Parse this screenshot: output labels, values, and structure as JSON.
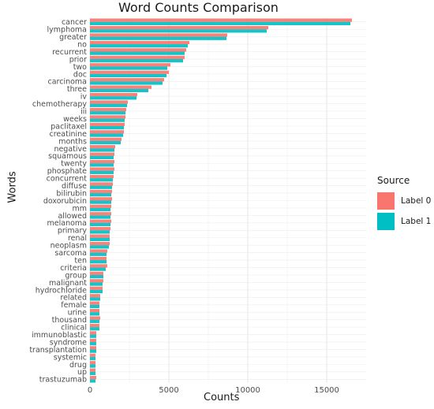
{
  "chart_data": {
    "type": "bar",
    "orientation": "horizontal",
    "title": "Word Counts Comparison",
    "xlabel": "Counts",
    "ylabel": "Words",
    "xlim": [
      0,
      17500
    ],
    "xticks": [
      0,
      5000,
      10000,
      15000
    ],
    "xtick_labels": [
      "0",
      "5000",
      "10000",
      "15000"
    ],
    "grid": true,
    "legend": {
      "title": "Source",
      "position": "right"
    },
    "categories": [
      "cancer",
      "lymphoma",
      "greater",
      "no",
      "recurrent",
      "prior",
      "two",
      "doc",
      "carcinoma",
      "three",
      "iv",
      "chemotherapy",
      "iii",
      "weeks",
      "paclitaxel",
      "creatinine",
      "months",
      "negative",
      "squamous",
      "twenty",
      "phosphate",
      "concurrent",
      "diffuse",
      "bilirubin",
      "doxorubicin",
      "mm",
      "allowed",
      "melanoma",
      "primary",
      "renal",
      "neoplasm",
      "sarcoma",
      "ten",
      "criteria",
      "group",
      "malignant",
      "hydrochloride",
      "related",
      "female",
      "urine",
      "thousand",
      "clinical",
      "immunoblastic",
      "syndrome",
      "transplantation",
      "systemic",
      "drug",
      "up",
      "trastuzumab"
    ],
    "series": [
      {
        "name": "Label 0",
        "color": "#F8766D",
        "values": [
          16600,
          11300,
          8700,
          6300,
          6100,
          6000,
          5100,
          5000,
          4700,
          3900,
          3000,
          2400,
          2300,
          2250,
          2200,
          2150,
          2000,
          1600,
          1550,
          1550,
          1550,
          1500,
          1450,
          1400,
          1400,
          1350,
          1350,
          1350,
          1300,
          1250,
          1250,
          1100,
          1050,
          1100,
          850,
          850,
          800,
          650,
          600,
          600,
          650,
          600,
          400,
          400,
          400,
          350,
          350,
          350,
          400
        ]
      },
      {
        "name": "Label 1",
        "color": "#00BFC4",
        "values": [
          16500,
          11200,
          8650,
          6200,
          6000,
          5900,
          4900,
          4850,
          4600,
          3700,
          2950,
          2350,
          2250,
          2200,
          2150,
          2100,
          1950,
          1550,
          1500,
          1500,
          1500,
          1450,
          1400,
          1350,
          1350,
          1300,
          1300,
          1300,
          1250,
          1250,
          1200,
          1050,
          1050,
          1000,
          850,
          800,
          800,
          650,
          600,
          600,
          600,
          600,
          400,
          400,
          400,
          350,
          350,
          350,
          350
        ]
      }
    ]
  }
}
